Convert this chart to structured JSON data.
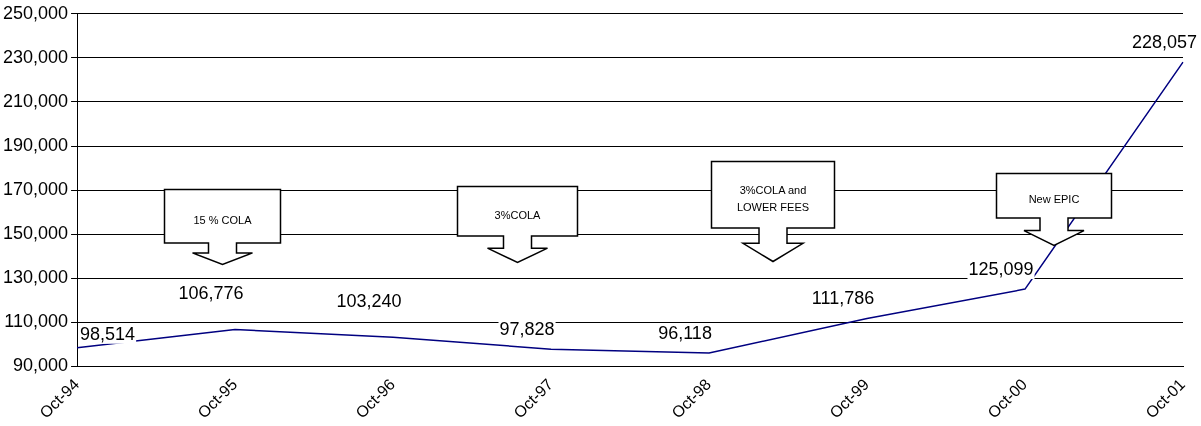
{
  "chart_data": {
    "type": "line",
    "categories": [
      "Oct-94",
      "Oct-95",
      "Oct-96",
      "Oct-97",
      "Oct-98",
      "Oct-99",
      "Oct-00",
      "Oct-01"
    ],
    "series": [
      {
        "color": "#000080",
        "values": [
          98514,
          106776,
          103240,
          97828,
          96118,
          111786,
          125099,
          228057
        ],
        "value_labels": [
          "98,514",
          "106,776",
          "103,240",
          "97,828",
          "96,118",
          "111,786",
          "125,099",
          "228,057"
        ]
      }
    ],
    "ylim": [
      90000,
      250000
    ],
    "yticks": [
      {
        "value": 90000,
        "label": "90,000"
      },
      {
        "value": 110000,
        "label": "110,000"
      },
      {
        "value": 130000,
        "label": "130,000"
      },
      {
        "value": 150000,
        "label": "150,000"
      },
      {
        "value": 170000,
        "label": "170,000"
      },
      {
        "value": 190000,
        "label": "190,000"
      },
      {
        "value": 210000,
        "label": "210,000"
      },
      {
        "value": 230000,
        "label": "230,000"
      },
      {
        "value": 250000,
        "label": "250,000"
      }
    ],
    "grid": "y",
    "legend": false,
    "marker": "none",
    "line_style": "solid",
    "annotations": [
      "15 % COLA",
      "3%COLA",
      "3%COLA and LOWER FEES",
      "New EPIC"
    ]
  }
}
